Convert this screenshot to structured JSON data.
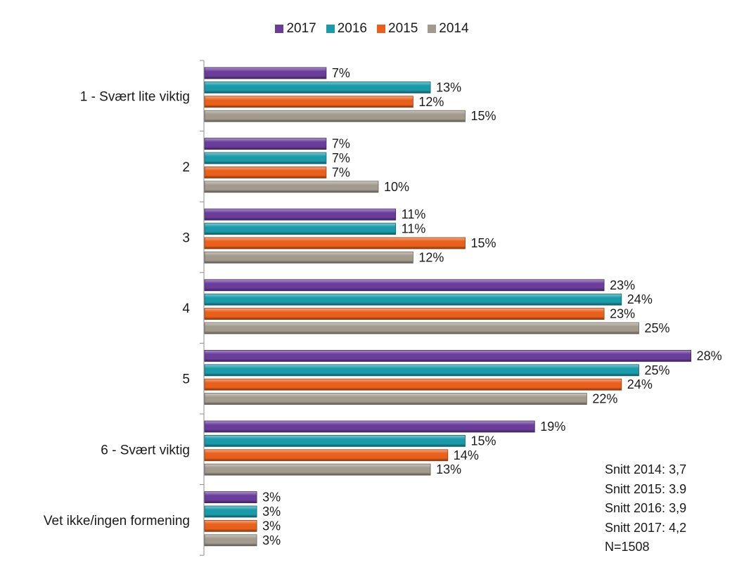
{
  "chart_data": {
    "type": "bar",
    "orientation": "horizontal",
    "categories": [
      "1 - Svært lite viktig",
      "2",
      "3",
      "4",
      "5",
      "6 - Svært viktig",
      "Vet ikke/ingen formening"
    ],
    "series": [
      {
        "name": "2017",
        "color": "#6a3d9a",
        "values": [
          7,
          7,
          11,
          23,
          28,
          19,
          3
        ]
      },
      {
        "name": "2016",
        "color": "#1b9aaa",
        "values": [
          13,
          7,
          11,
          24,
          25,
          15,
          3
        ]
      },
      {
        "name": "2015",
        "color": "#e8601c",
        "values": [
          12,
          7,
          15,
          23,
          24,
          14,
          3
        ]
      },
      {
        "name": "2014",
        "color": "#a39a8e",
        "values": [
          15,
          10,
          12,
          25,
          22,
          13,
          3
        ]
      }
    ],
    "value_suffix": "%",
    "xlim": [
      0,
      30
    ],
    "legend_position": "top",
    "grid": false,
    "annotations": [
      "Snitt 2014: 3,7",
      "Snitt 2015: 3.9",
      "Snitt 2016: 3,9",
      "Snitt 2017: 4,2",
      "N=1508"
    ]
  }
}
